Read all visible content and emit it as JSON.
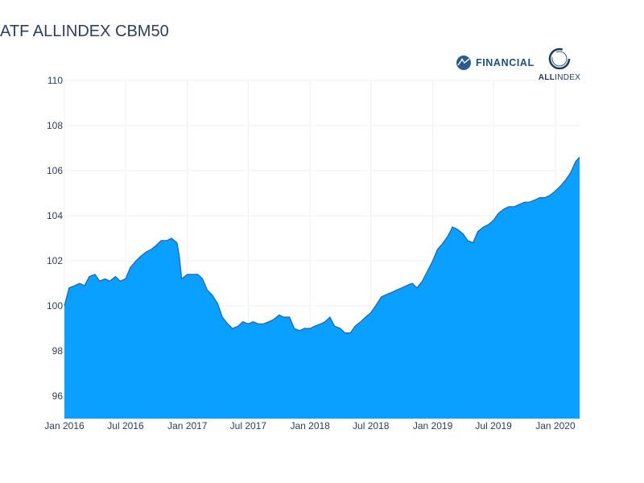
{
  "chart_data": {
    "type": "area",
    "title": "ATF ALLINDEX CBM50",
    "xlabel": "",
    "ylabel": "",
    "ylim": [
      95,
      110
    ],
    "xlim": [
      "2016-01-01",
      "2020-03-13"
    ],
    "grid": true,
    "fill_color": "#0aa0ff",
    "line_color": "#1a5fbf",
    "yticks": [
      96,
      98,
      100,
      102,
      104,
      106,
      108,
      110
    ],
    "xticks": [
      {
        "date": "2016-01-01",
        "label": "Jan 2016"
      },
      {
        "date": "2016-07-01",
        "label": "Jul 2016"
      },
      {
        "date": "2017-01-01",
        "label": "Jan 2017"
      },
      {
        "date": "2017-07-01",
        "label": "Jul 2017"
      },
      {
        "date": "2018-01-01",
        "label": "Jan 2018"
      },
      {
        "date": "2018-07-01",
        "label": "Jul 2018"
      },
      {
        "date": "2019-01-01",
        "label": "Jan 2019"
      },
      {
        "date": "2019-07-01",
        "label": "Jul 2019"
      },
      {
        "date": "2020-01-01",
        "label": "Jan 2020"
      }
    ],
    "series": [
      {
        "x": [
          "2016-01-01",
          "2016-01-15",
          "2016-02-01",
          "2016-02-15",
          "2016-03-01",
          "2016-03-15",
          "2016-04-01",
          "2016-04-15",
          "2016-05-01",
          "2016-05-15",
          "2016-06-01",
          "2016-06-15",
          "2016-07-01",
          "2016-07-15",
          "2016-08-01",
          "2016-08-15",
          "2016-09-01",
          "2016-09-15",
          "2016-10-01",
          "2016-10-15",
          "2016-11-01",
          "2016-11-15",
          "2016-12-01",
          "2016-12-08",
          "2016-12-15",
          "2017-01-01",
          "2017-01-15",
          "2017-02-01",
          "2017-02-15",
          "2017-03-01",
          "2017-03-15",
          "2017-04-01",
          "2017-04-15",
          "2017-05-01",
          "2017-05-15",
          "2017-06-01",
          "2017-06-15",
          "2017-07-01",
          "2017-07-15",
          "2017-08-01",
          "2017-08-15",
          "2017-09-01",
          "2017-09-15",
          "2017-10-01",
          "2017-10-15",
          "2017-11-01",
          "2017-11-15",
          "2017-12-01",
          "2017-12-15",
          "2018-01-01",
          "2018-01-15",
          "2018-02-01",
          "2018-02-15",
          "2018-03-01",
          "2018-03-15",
          "2018-04-01",
          "2018-04-15",
          "2018-05-01",
          "2018-05-15",
          "2018-06-01",
          "2018-06-15",
          "2018-07-01",
          "2018-07-15",
          "2018-08-01",
          "2018-08-15",
          "2018-09-01",
          "2018-09-15",
          "2018-10-01",
          "2018-10-15",
          "2018-11-01",
          "2018-11-15",
          "2018-12-01",
          "2018-12-15",
          "2019-01-01",
          "2019-01-15",
          "2019-02-01",
          "2019-02-15",
          "2019-03-01",
          "2019-03-15",
          "2019-04-01",
          "2019-04-15",
          "2019-05-01",
          "2019-05-15",
          "2019-06-01",
          "2019-06-15",
          "2019-07-01",
          "2019-07-15",
          "2019-08-01",
          "2019-08-15",
          "2019-09-01",
          "2019-09-15",
          "2019-10-01",
          "2019-10-15",
          "2019-11-01",
          "2019-11-15",
          "2019-12-01",
          "2019-12-15",
          "2020-01-01",
          "2020-01-15",
          "2020-02-01",
          "2020-02-15",
          "2020-03-01",
          "2020-03-13"
        ],
        "y": [
          100.0,
          100.8,
          100.9,
          101.0,
          100.9,
          101.3,
          101.4,
          101.1,
          101.2,
          101.1,
          101.3,
          101.1,
          101.2,
          101.7,
          102.0,
          102.2,
          102.4,
          102.5,
          102.7,
          102.9,
          102.9,
          103.0,
          102.8,
          102.2,
          101.2,
          101.4,
          101.4,
          101.4,
          101.2,
          100.7,
          100.5,
          100.1,
          99.5,
          99.2,
          99.0,
          99.1,
          99.3,
          99.2,
          99.3,
          99.2,
          99.2,
          99.3,
          99.4,
          99.6,
          99.5,
          99.5,
          99.0,
          98.9,
          99.0,
          99.0,
          99.1,
          99.2,
          99.3,
          99.5,
          99.1,
          99.0,
          98.8,
          98.8,
          99.1,
          99.3,
          99.5,
          99.7,
          100.0,
          100.4,
          100.5,
          100.6,
          100.7,
          100.8,
          100.9,
          101.0,
          100.8,
          101.1,
          101.5,
          102.0,
          102.5,
          102.8,
          103.1,
          103.5,
          103.4,
          103.2,
          102.9,
          102.8,
          103.3,
          103.5,
          103.6,
          103.8,
          104.1,
          104.3,
          104.4,
          104.4,
          104.5,
          104.6,
          104.6,
          104.7,
          104.8,
          104.8,
          104.9,
          105.1,
          105.3,
          105.6,
          105.9,
          106.4,
          106.6
        ]
      }
    ]
  },
  "logos": {
    "financial_text": "FINANCIAL",
    "allindex_bold": "ALL",
    "allindex_rest": "INDEX"
  }
}
